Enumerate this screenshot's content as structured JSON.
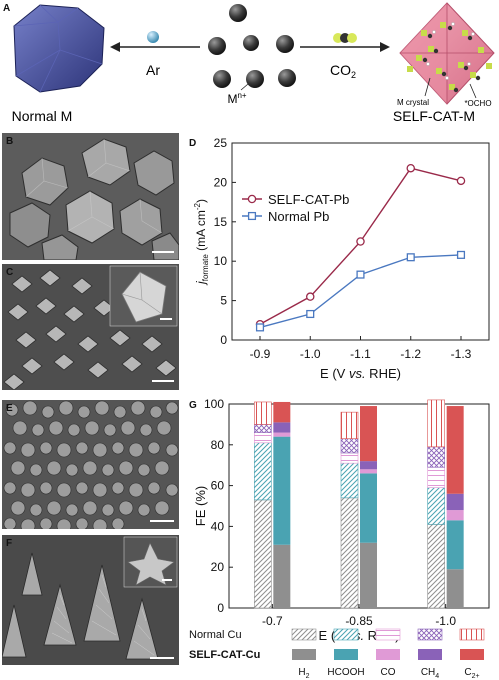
{
  "panel_a": {
    "letter": "A",
    "left_arrow_label": "Ar",
    "right_arrow_label": "CO",
    "right_arrow_sub": "2",
    "metal_ion_label": "M",
    "metal_ion_sup": "n+",
    "left_product": "Normal M",
    "right_product": "SELF-CAT-M",
    "annotation_crystal": "M crystal",
    "annotation_ocho": "*OCHO"
  },
  "panel_letters": {
    "b": "B",
    "c": "C",
    "d": "D",
    "e": "E",
    "f": "F",
    "g": "G"
  },
  "chart_data": [
    {
      "panel": "D",
      "type": "line",
      "title": "",
      "ylabel": "j_formate (mA cm⁻²)",
      "ylabel_main": "j",
      "ylabel_sub": "formate",
      "ylabel_unit": " (mA cm",
      "ylabel_sup": "-2",
      "ylabel_close": ")",
      "xlabel": "E (V vs. RHE)",
      "xlabel_pre": "E (V ",
      "xlabel_vs": "vs.",
      "xlabel_post": " RHE)",
      "ylim": [
        0,
        25
      ],
      "yticks": [
        0,
        5,
        10,
        15,
        20,
        25
      ],
      "categories": [
        "-0.9",
        "-1.0",
        "-1.1",
        "-1.2",
        "-1.3"
      ],
      "legend_position": "upper-left",
      "series": [
        {
          "name": "SELF-CAT-Pb",
          "color": "#9a2a4a",
          "marker": "circle",
          "values": [
            2.0,
            5.5,
            12.5,
            21.8,
            20.2
          ]
        },
        {
          "name": "Normal Pb",
          "color": "#4a78c0",
          "marker": "square",
          "values": [
            1.6,
            3.3,
            8.3,
            10.5,
            10.8
          ]
        }
      ]
    },
    {
      "panel": "G",
      "type": "bar",
      "stacked": true,
      "title": "",
      "ylabel": "FE (%)",
      "xlabel": "E (V vs. RHE)",
      "xlabel_pre": "E (V ",
      "xlabel_vs": "vs.",
      "xlabel_post": " RHE)",
      "ylim": [
        0,
        100
      ],
      "yticks": [
        0,
        20,
        40,
        60,
        80,
        100
      ],
      "categories": [
        "-0.7",
        "-0.85",
        "-1.0"
      ],
      "products": [
        "H2",
        "HCOOH",
        "CO",
        "CH4",
        "C2+"
      ],
      "product_colors": [
        "#8f8f8f",
        "#4aa3b2",
        "#e09ad6",
        "#8a62b8",
        "#d95454"
      ],
      "series": [
        {
          "name": "Normal Cu",
          "pattern": "hatched",
          "stacks": [
            [
              53,
              28,
              5,
              4,
              11
            ],
            [
              54,
              17,
              5,
              7,
              13
            ],
            [
              41,
              18,
              10,
              10,
              23
            ]
          ]
        },
        {
          "name": "SELF-CAT-Cu",
          "pattern": "solid",
          "stacks": [
            [
              31,
              53,
              2,
              5,
              10
            ],
            [
              32,
              34,
              2,
              4,
              27
            ],
            [
              19,
              24,
              5,
              8,
              43
            ]
          ]
        }
      ],
      "legend": {
        "row_labels": [
          "Normal Cu",
          "SELF-CAT-Cu"
        ],
        "product_labels": [
          {
            "main": "H",
            "sub": "2"
          },
          {
            "main": "HCOOH",
            "sub": ""
          },
          {
            "main": "CO",
            "sub": ""
          },
          {
            "main": "CH",
            "sub": "4"
          },
          {
            "main": "C",
            "sub": "2+"
          }
        ]
      }
    }
  ]
}
